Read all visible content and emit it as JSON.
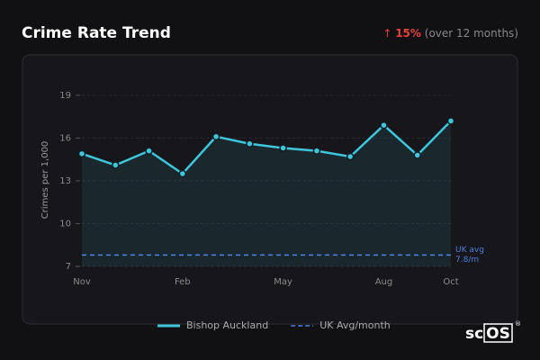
{
  "header": {
    "title": "Crime Rate Trend",
    "change_arrow": "↑",
    "change": "15%",
    "change_note": "(over 12 months)"
  },
  "chart_data": {
    "type": "line",
    "y_label": "Crimes per 1,000",
    "categories": [
      "Nov",
      null,
      null,
      "Feb",
      null,
      null,
      "May",
      null,
      null,
      "Aug",
      null,
      "Oct"
    ],
    "series": [
      {
        "name": "Bishop Auckland",
        "color": "#3ec6dc",
        "values": [
          14.9,
          14.1,
          15.1,
          13.5,
          16.1,
          15.6,
          15.3,
          15.1,
          14.7,
          16.9,
          14.8,
          17.2
        ]
      }
    ],
    "reference_line": {
      "name": "UK Avg/month",
      "value": 7.8,
      "color": "#4a7fe0",
      "label_lines": [
        "UK avg",
        "7.8/m"
      ]
    },
    "ylim": [
      7,
      20
    ],
    "yticks": [
      7,
      10,
      13,
      16,
      19
    ],
    "grid": true,
    "area": true
  },
  "logo": {
    "plain": "sc",
    "boxed": "OS",
    "mark": "®"
  }
}
